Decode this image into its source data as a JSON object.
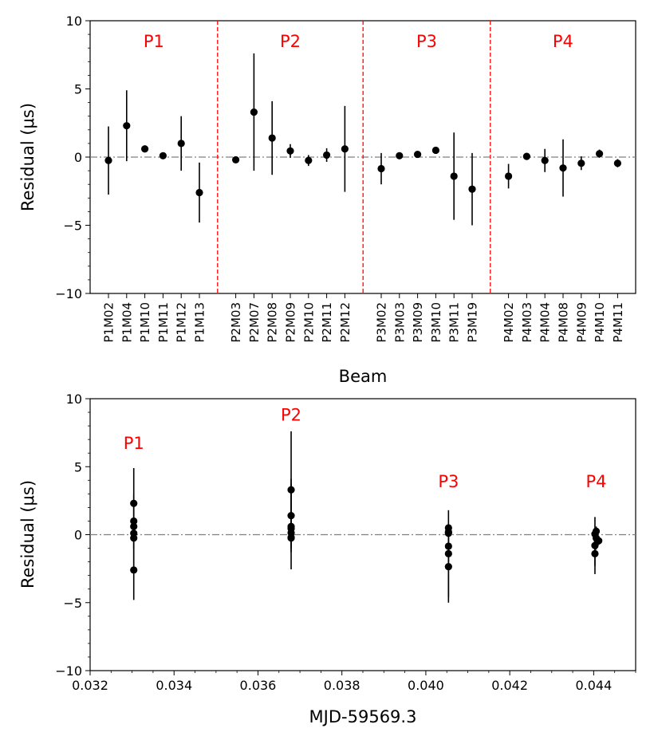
{
  "chart_data": [
    {
      "type": "scatter",
      "title": "",
      "xlabel": "Beam",
      "ylabel": "Residual (μs)",
      "ylim": [
        -10,
        10
      ],
      "yticks": [
        -10,
        -5,
        0,
        5,
        10
      ],
      "ytick_labels": [
        "−10",
        "−5",
        "0",
        "5",
        "10"
      ],
      "zero_line": 0,
      "groups": [
        {
          "label": "P1",
          "points": [
            {
              "beam": "P1M02",
              "value": -0.25,
              "err": 2.5
            },
            {
              "beam": "P1M04",
              "value": 2.3,
              "err": 2.6
            },
            {
              "beam": "P1M10",
              "value": 0.6,
              "err": 0.25
            },
            {
              "beam": "P1M11",
              "value": 0.1,
              "err": 0.2
            },
            {
              "beam": "P1M12",
              "value": 1.0,
              "err": 2.0
            },
            {
              "beam": "P1M13",
              "value": -2.6,
              "err": 2.2
            }
          ]
        },
        {
          "label": "P2",
          "points": [
            {
              "beam": "P2M03",
              "value": -0.2,
              "err": 0.25
            },
            {
              "beam": "P2M07",
              "value": 3.3,
              "err": 4.3
            },
            {
              "beam": "P2M08",
              "value": 1.4,
              "err": 2.7
            },
            {
              "beam": "P2M09",
              "value": 0.45,
              "err": 0.5
            },
            {
              "beam": "P2M10",
              "value": -0.25,
              "err": 0.4
            },
            {
              "beam": "P2M11",
              "value": 0.15,
              "err": 0.5
            },
            {
              "beam": "P2M12",
              "value": 0.6,
              "err": 3.15
            }
          ]
        },
        {
          "label": "P3",
          "points": [
            {
              "beam": "P3M02",
              "value": -0.85,
              "err": 1.15
            },
            {
              "beam": "P3M03",
              "value": 0.1,
              "err": 0.2
            },
            {
              "beam": "P3M09",
              "value": 0.2,
              "err": 0.2
            },
            {
              "beam": "P3M10",
              "value": 0.5,
              "err": 0.25
            },
            {
              "beam": "P3M11",
              "value": -1.4,
              "err": 3.2
            },
            {
              "beam": "P3M19",
              "value": -2.35,
              "err": 2.65
            }
          ]
        },
        {
          "label": "P4",
          "points": [
            {
              "beam": "P4M02",
              "value": -1.4,
              "err": 0.9
            },
            {
              "beam": "P4M03",
              "value": 0.05,
              "err": 0.2
            },
            {
              "beam": "P4M04",
              "value": -0.25,
              "err": 0.85
            },
            {
              "beam": "P4M08",
              "value": -0.8,
              "err": 2.1
            },
            {
              "beam": "P4M09",
              "value": -0.45,
              "err": 0.5
            },
            {
              "beam": "P4M10",
              "value": 0.25,
              "err": 0.3
            },
            {
              "beam": "P4M11",
              "value": -0.45,
              "err": 0.3
            }
          ]
        }
      ]
    },
    {
      "type": "scatter",
      "title": "",
      "xlabel": "MJD-59569.3",
      "ylabel": "Residual (μs)",
      "xlim": [
        0.032,
        0.045
      ],
      "ylim": [
        -10,
        10
      ],
      "xticks": [
        0.032,
        0.034,
        0.036,
        0.038,
        0.04,
        0.042,
        0.044
      ],
      "xtick_labels": [
        "0.032",
        "0.034",
        "0.036",
        "0.038",
        "0.040",
        "0.042",
        "0.044"
      ],
      "yticks": [
        -10,
        -5,
        0,
        5,
        10
      ],
      "ytick_labels": [
        "−10",
        "−5",
        "0",
        "5",
        "10"
      ],
      "zero_line": 0,
      "annotations": [
        {
          "text": "P1",
          "x": 0.03304,
          "y": 6.3
        },
        {
          "text": "P2",
          "x": 0.03679,
          "y": 8.4
        },
        {
          "text": "P3",
          "x": 0.04054,
          "y": 3.5
        },
        {
          "text": "P4",
          "x": 0.04406,
          "y": 3.5
        }
      ],
      "series": [
        {
          "name": "P1",
          "points": [
            {
              "x": 0.03304,
              "y": -0.25,
              "err": 2.5
            },
            {
              "x": 0.03304,
              "y": 2.3,
              "err": 2.6
            },
            {
              "x": 0.03304,
              "y": 0.6,
              "err": 0.25
            },
            {
              "x": 0.03304,
              "y": 0.1,
              "err": 0.2
            },
            {
              "x": 0.03304,
              "y": 1.0,
              "err": 2.0
            },
            {
              "x": 0.03304,
              "y": -2.6,
              "err": 2.2
            }
          ]
        },
        {
          "name": "P2",
          "points": [
            {
              "x": 0.03679,
              "y": -0.2,
              "err": 0.25
            },
            {
              "x": 0.03679,
              "y": 3.3,
              "err": 4.3
            },
            {
              "x": 0.03679,
              "y": 1.4,
              "err": 2.7
            },
            {
              "x": 0.03679,
              "y": 0.45,
              "err": 0.5
            },
            {
              "x": 0.03679,
              "y": -0.25,
              "err": 0.4
            },
            {
              "x": 0.03679,
              "y": 0.15,
              "err": 0.5
            },
            {
              "x": 0.03679,
              "y": 0.6,
              "err": 3.15
            }
          ]
        },
        {
          "name": "P3",
          "points": [
            {
              "x": 0.04054,
              "y": -0.85,
              "err": 1.15
            },
            {
              "x": 0.04054,
              "y": 0.1,
              "err": 0.2
            },
            {
              "x": 0.04054,
              "y": 0.2,
              "err": 0.2
            },
            {
              "x": 0.04054,
              "y": 0.5,
              "err": 0.25
            },
            {
              "x": 0.04054,
              "y": -1.4,
              "err": 3.2
            },
            {
              "x": 0.04054,
              "y": -2.35,
              "err": 2.65
            }
          ]
        },
        {
          "name": "P4",
          "points": [
            {
              "x": 0.04403,
              "y": -1.4,
              "err": 0.9
            },
            {
              "x": 0.04403,
              "y": 0.05,
              "err": 0.2
            },
            {
              "x": 0.04406,
              "y": -0.25,
              "err": 0.85
            },
            {
              "x": 0.04403,
              "y": -0.8,
              "err": 2.1
            },
            {
              "x": 0.04409,
              "y": -0.45,
              "err": 0.5
            },
            {
              "x": 0.04406,
              "y": 0.25,
              "err": 0.3
            },
            {
              "x": 0.04412,
              "y": -0.45,
              "err": 0.3
            }
          ]
        }
      ]
    }
  ],
  "colors": {
    "axis": "#000000",
    "points": "#000000",
    "zero_line": "#808080",
    "group_label": "#ff0000",
    "separator": "#ff0000"
  }
}
